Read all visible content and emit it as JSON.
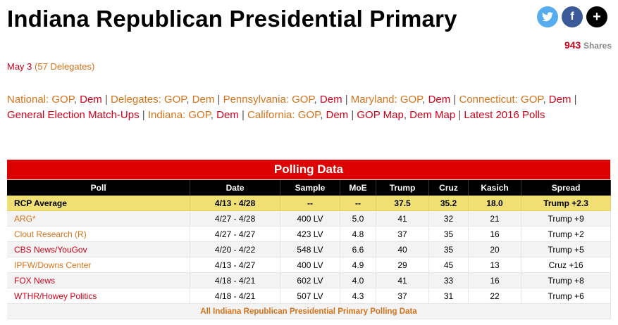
{
  "header": {
    "title": "Indiana Republican Presidential Primary",
    "date": "May 3",
    "delegates": "(57 Delegates)"
  },
  "social": {
    "twitter": "t",
    "facebook": "f",
    "more": "+",
    "share_count": "943",
    "share_label": "Shares"
  },
  "nav": [
    {
      "t": "National: GOP",
      "c": "o"
    },
    {
      "t": ", ",
      "c": "sep"
    },
    {
      "t": "Dem",
      "c": "r"
    },
    {
      "t": " | ",
      "c": "sep"
    },
    {
      "t": "Delegates: GOP",
      "c": "o"
    },
    {
      "t": ", ",
      "c": "sep"
    },
    {
      "t": "Dem",
      "c": "o"
    },
    {
      "t": " | ",
      "c": "sep"
    },
    {
      "t": "Pennsylvania: GOP",
      "c": "o"
    },
    {
      "t": ", ",
      "c": "sep"
    },
    {
      "t": "Dem",
      "c": "r"
    },
    {
      "t": " | ",
      "c": "sep"
    },
    {
      "t": "Maryland: GOP",
      "c": "o"
    },
    {
      "t": ", ",
      "c": "sep"
    },
    {
      "t": "Dem",
      "c": "r"
    },
    {
      "t": " | ",
      "c": "sep"
    },
    {
      "t": "Connecticut: GOP",
      "c": "o"
    },
    {
      "t": ", ",
      "c": "sep"
    },
    {
      "t": "Dem",
      "c": "r"
    },
    {
      "t": " | ",
      "c": "sep"
    },
    {
      "t": "General Election Match-Ups",
      "c": "r"
    },
    {
      "t": " | ",
      "c": "sep"
    },
    {
      "t": "Indiana: GOP",
      "c": "o"
    },
    {
      "t": ", ",
      "c": "sep"
    },
    {
      "t": "Dem",
      "c": "r"
    },
    {
      "t": " | ",
      "c": "sep"
    },
    {
      "t": "California: GOP",
      "c": "o"
    },
    {
      "t": ", ",
      "c": "sep"
    },
    {
      "t": "Dem",
      "c": "r"
    },
    {
      "t": " | ",
      "c": "sep"
    },
    {
      "t": "GOP Map",
      "c": "r"
    },
    {
      "t": ", ",
      "c": "sep"
    },
    {
      "t": "Dem Map",
      "c": "r"
    },
    {
      "t": " | ",
      "c": "sep"
    },
    {
      "t": "Latest 2016 Polls",
      "c": "r"
    }
  ],
  "table": {
    "title": "Polling Data",
    "columns": [
      "Poll",
      "Date",
      "Sample",
      "MoE",
      "Trump",
      "Cruz",
      "Kasich",
      "Spread"
    ],
    "average": [
      "RCP Average",
      "4/13 - 4/28",
      "--",
      "--",
      "37.5",
      "35.2",
      "18.0",
      "Trump +2.3"
    ],
    "rows": [
      {
        "c": "o",
        "cells": [
          "ARG*",
          "4/27 - 4/28",
          "400 LV",
          "5.0",
          "41",
          "32",
          "21",
          "Trump +9"
        ]
      },
      {
        "c": "o",
        "cells": [
          "Clout Research (R)",
          "4/27 - 4/27",
          "423 LV",
          "4.8",
          "37",
          "35",
          "16",
          "Trump +2"
        ]
      },
      {
        "c": "r",
        "cells": [
          "CBS News/YouGov",
          "4/20 - 4/22",
          "548 LV",
          "6.6",
          "40",
          "35",
          "20",
          "Trump +5"
        ]
      },
      {
        "c": "o",
        "cells": [
          "IPFW/Downs Center",
          "4/13 - 4/27",
          "400 LV",
          "4.9",
          "29",
          "45",
          "13",
          "Cruz +16"
        ]
      },
      {
        "c": "r",
        "cells": [
          "FOX News",
          "4/18 - 4/21",
          "602 LV",
          "4.0",
          "41",
          "33",
          "16",
          "Trump +8"
        ]
      },
      {
        "c": "r",
        "cells": [
          "WTHR/Howey Politics",
          "4/18 - 4/21",
          "507 LV",
          "4.3",
          "37",
          "31",
          "22",
          "Trump +6"
        ]
      }
    ],
    "footer": "All Indiana Republican Presidential Primary Polling Data"
  }
}
